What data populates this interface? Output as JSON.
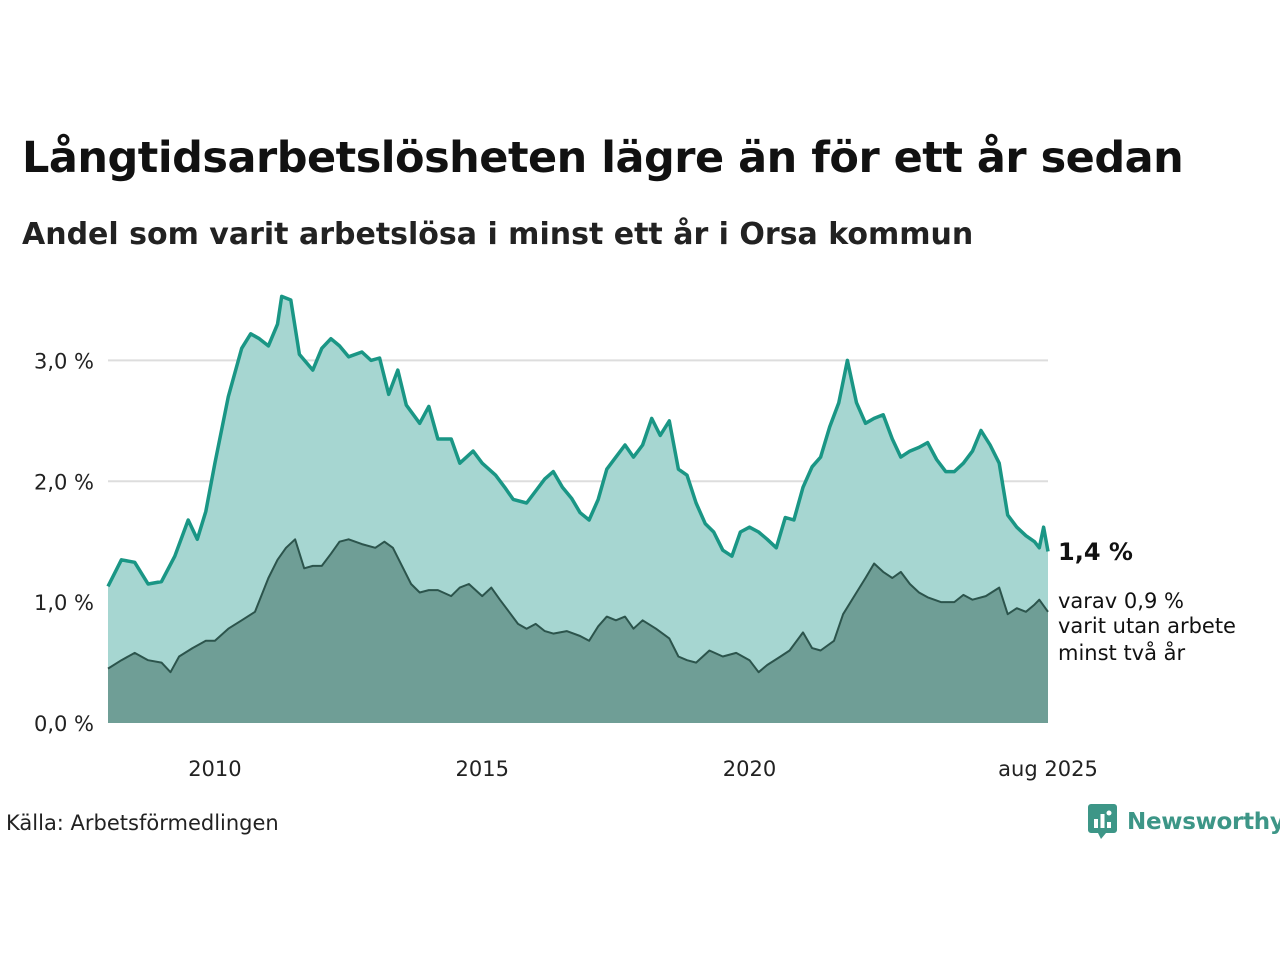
{
  "title": "Långtidsarbetslösheten lägre än för ett år sedan",
  "subtitle": "Andel som varit arbetslösa i minst ett år i Orsa kommun",
  "source": "Källa: Arbetsförmedlingen",
  "brand": {
    "name": "Newsworthy",
    "icon": "newsworthy-logo-icon",
    "color": "#3d9687"
  },
  "colors": {
    "total_line": "#1a9685",
    "total_fill": "#a6d6d1",
    "long_line": "#2c544c",
    "long_fill": "#6f9e96",
    "grid": "#dddddd"
  },
  "annotations": {
    "latest_total": "1,4 %",
    "latest_long_line1": "varav 0,9 %",
    "latest_long_line2": "varit utan arbete",
    "latest_long_line3": "minst två år"
  },
  "chart_data": {
    "type": "area",
    "title": "Långtidsarbetslösheten lägre än för ett år sedan",
    "subtitle": "Andel som varit arbetslösa i minst ett år i Orsa kommun",
    "xlabel": "",
    "ylabel": "",
    "x_range": [
      2008.0,
      2025.583
    ],
    "ylim": [
      0,
      3.5
    ],
    "grid": true,
    "x_ticks": [
      {
        "value": 2010,
        "label": "2010"
      },
      {
        "value": 2015,
        "label": "2015"
      },
      {
        "value": 2020,
        "label": "2020"
      },
      {
        "value": 2025.583,
        "label": "aug 2025"
      }
    ],
    "y_ticks": [
      {
        "value": 0,
        "label": "0,0 %"
      },
      {
        "value": 1,
        "label": "1,0 %"
      },
      {
        "value": 2,
        "label": "2,0 %"
      },
      {
        "value": 3,
        "label": "3,0 %"
      }
    ],
    "series": [
      {
        "points": [
          [
            2008.0,
            1.13
          ],
          [
            2008.25,
            1.35
          ],
          [
            2008.5,
            1.33
          ],
          [
            2008.75,
            1.15
          ],
          [
            2009.0,
            1.17
          ],
          [
            2009.25,
            1.38
          ],
          [
            2009.5,
            1.68
          ],
          [
            2009.67,
            1.52
          ],
          [
            2009.83,
            1.75
          ],
          [
            2010.0,
            2.15
          ],
          [
            2010.25,
            2.7
          ],
          [
            2010.5,
            3.1
          ],
          [
            2010.67,
            3.22
          ],
          [
            2010.83,
            3.18
          ],
          [
            2011.0,
            3.12
          ],
          [
            2011.17,
            3.3
          ],
          [
            2011.25,
            3.53
          ],
          [
            2011.42,
            3.5
          ],
          [
            2011.58,
            3.05
          ],
          [
            2011.83,
            2.92
          ],
          [
            2012.0,
            3.1
          ],
          [
            2012.17,
            3.18
          ],
          [
            2012.33,
            3.12
          ],
          [
            2012.5,
            3.03
          ],
          [
            2012.75,
            3.07
          ],
          [
            2012.92,
            3.0
          ],
          [
            2013.08,
            3.02
          ],
          [
            2013.25,
            2.72
          ],
          [
            2013.42,
            2.92
          ],
          [
            2013.58,
            2.63
          ],
          [
            2013.83,
            2.48
          ],
          [
            2014.0,
            2.62
          ],
          [
            2014.17,
            2.35
          ],
          [
            2014.42,
            2.35
          ],
          [
            2014.58,
            2.15
          ],
          [
            2014.83,
            2.25
          ],
          [
            2015.0,
            2.15
          ],
          [
            2015.25,
            2.05
          ],
          [
            2015.42,
            1.95
          ],
          [
            2015.58,
            1.85
          ],
          [
            2015.83,
            1.82
          ],
          [
            2016.0,
            1.92
          ],
          [
            2016.17,
            2.02
          ],
          [
            2016.33,
            2.08
          ],
          [
            2016.5,
            1.95
          ],
          [
            2016.67,
            1.86
          ],
          [
            2016.83,
            1.74
          ],
          [
            2017.0,
            1.68
          ],
          [
            2017.17,
            1.85
          ],
          [
            2017.33,
            2.1
          ],
          [
            2017.5,
            2.2
          ],
          [
            2017.67,
            2.3
          ],
          [
            2017.83,
            2.2
          ],
          [
            2018.0,
            2.3
          ],
          [
            2018.17,
            2.52
          ],
          [
            2018.33,
            2.38
          ],
          [
            2018.5,
            2.5
          ],
          [
            2018.67,
            2.1
          ],
          [
            2018.83,
            2.05
          ],
          [
            2019.0,
            1.82
          ],
          [
            2019.17,
            1.65
          ],
          [
            2019.33,
            1.58
          ],
          [
            2019.5,
            1.43
          ],
          [
            2019.67,
            1.38
          ],
          [
            2019.83,
            1.58
          ],
          [
            2020.0,
            1.62
          ],
          [
            2020.17,
            1.58
          ],
          [
            2020.33,
            1.52
          ],
          [
            2020.5,
            1.45
          ],
          [
            2020.67,
            1.7
          ],
          [
            2020.83,
            1.68
          ],
          [
            2021.0,
            1.95
          ],
          [
            2021.17,
            2.12
          ],
          [
            2021.33,
            2.2
          ],
          [
            2021.5,
            2.45
          ],
          [
            2021.67,
            2.65
          ],
          [
            2021.83,
            3.0
          ],
          [
            2022.0,
            2.65
          ],
          [
            2022.17,
            2.48
          ],
          [
            2022.33,
            2.52
          ],
          [
            2022.5,
            2.55
          ],
          [
            2022.67,
            2.35
          ],
          [
            2022.83,
            2.2
          ],
          [
            2023.0,
            2.25
          ],
          [
            2023.17,
            2.28
          ],
          [
            2023.33,
            2.32
          ],
          [
            2023.5,
            2.18
          ],
          [
            2023.67,
            2.08
          ],
          [
            2023.83,
            2.08
          ],
          [
            2024.0,
            2.15
          ],
          [
            2024.17,
            2.25
          ],
          [
            2024.33,
            2.42
          ],
          [
            2024.5,
            2.3
          ],
          [
            2024.67,
            2.15
          ],
          [
            2024.83,
            1.72
          ],
          [
            2025.0,
            1.62
          ],
          [
            2025.17,
            1.55
          ],
          [
            2025.33,
            1.5
          ],
          [
            2025.42,
            1.45
          ],
          [
            2025.5,
            1.62
          ],
          [
            2025.583,
            1.42
          ]
        ]
      },
      {
        "points": [
          [
            2008.0,
            0.45
          ],
          [
            2008.25,
            0.52
          ],
          [
            2008.5,
            0.58
          ],
          [
            2008.75,
            0.52
          ],
          [
            2009.0,
            0.5
          ],
          [
            2009.17,
            0.42
          ],
          [
            2009.33,
            0.55
          ],
          [
            2009.58,
            0.62
          ],
          [
            2009.83,
            0.68
          ],
          [
            2010.0,
            0.68
          ],
          [
            2010.25,
            0.78
          ],
          [
            2010.5,
            0.85
          ],
          [
            2010.75,
            0.92
          ],
          [
            2011.0,
            1.2
          ],
          [
            2011.17,
            1.35
          ],
          [
            2011.33,
            1.45
          ],
          [
            2011.5,
            1.52
          ],
          [
            2011.67,
            1.28
          ],
          [
            2011.83,
            1.3
          ],
          [
            2012.0,
            1.3
          ],
          [
            2012.17,
            1.4
          ],
          [
            2012.33,
            1.5
          ],
          [
            2012.5,
            1.52
          ],
          [
            2012.75,
            1.48
          ],
          [
            2013.0,
            1.45
          ],
          [
            2013.17,
            1.5
          ],
          [
            2013.33,
            1.45
          ],
          [
            2013.5,
            1.3
          ],
          [
            2013.67,
            1.15
          ],
          [
            2013.83,
            1.08
          ],
          [
            2014.0,
            1.1
          ],
          [
            2014.17,
            1.1
          ],
          [
            2014.42,
            1.05
          ],
          [
            2014.58,
            1.12
          ],
          [
            2014.75,
            1.15
          ],
          [
            2015.0,
            1.05
          ],
          [
            2015.17,
            1.12
          ],
          [
            2015.33,
            1.02
          ],
          [
            2015.5,
            0.92
          ],
          [
            2015.67,
            0.82
          ],
          [
            2015.83,
            0.78
          ],
          [
            2016.0,
            0.82
          ],
          [
            2016.17,
            0.76
          ],
          [
            2016.33,
            0.74
          ],
          [
            2016.58,
            0.76
          ],
          [
            2016.83,
            0.72
          ],
          [
            2017.0,
            0.68
          ],
          [
            2017.17,
            0.8
          ],
          [
            2017.33,
            0.88
          ],
          [
            2017.5,
            0.85
          ],
          [
            2017.67,
            0.88
          ],
          [
            2017.83,
            0.78
          ],
          [
            2018.0,
            0.85
          ],
          [
            2018.25,
            0.78
          ],
          [
            2018.5,
            0.7
          ],
          [
            2018.67,
            0.55
          ],
          [
            2018.83,
            0.52
          ],
          [
            2019.0,
            0.5
          ],
          [
            2019.25,
            0.6
          ],
          [
            2019.5,
            0.55
          ],
          [
            2019.75,
            0.58
          ],
          [
            2020.0,
            0.52
          ],
          [
            2020.17,
            0.42
          ],
          [
            2020.33,
            0.48
          ],
          [
            2020.58,
            0.55
          ],
          [
            2020.75,
            0.6
          ],
          [
            2021.0,
            0.75
          ],
          [
            2021.17,
            0.62
          ],
          [
            2021.33,
            0.6
          ],
          [
            2021.58,
            0.68
          ],
          [
            2021.75,
            0.9
          ],
          [
            2022.0,
            1.08
          ],
          [
            2022.17,
            1.2
          ],
          [
            2022.33,
            1.32
          ],
          [
            2022.5,
            1.25
          ],
          [
            2022.67,
            1.2
          ],
          [
            2022.83,
            1.25
          ],
          [
            2023.0,
            1.15
          ],
          [
            2023.17,
            1.08
          ],
          [
            2023.33,
            1.04
          ],
          [
            2023.58,
            1.0
          ],
          [
            2023.83,
            1.0
          ],
          [
            2024.0,
            1.06
          ],
          [
            2024.17,
            1.02
          ],
          [
            2024.42,
            1.05
          ],
          [
            2024.67,
            1.12
          ],
          [
            2024.83,
            0.9
          ],
          [
            2025.0,
            0.95
          ],
          [
            2025.17,
            0.92
          ],
          [
            2025.33,
            0.98
          ],
          [
            2025.42,
            1.02
          ],
          [
            2025.583,
            0.92
          ]
        ]
      }
    ]
  }
}
